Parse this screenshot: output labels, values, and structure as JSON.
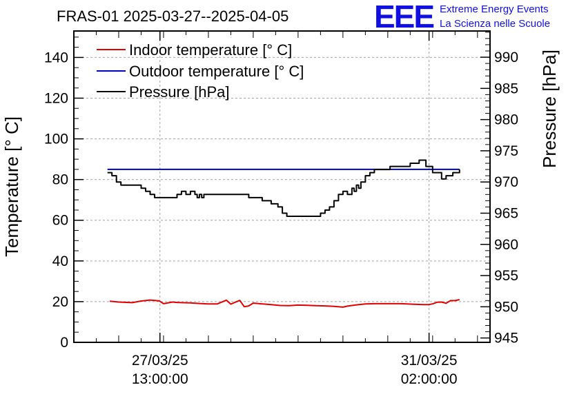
{
  "chart_data": {
    "type": "line",
    "title": "FRAS-01 2025-03-27--2025-04-05",
    "logo": {
      "text": "EEE",
      "line1": "Extreme Energy Events",
      "line2": "La Scienza nelle Scuole"
    },
    "ylabel": "Temperature [° C]",
    "y2label": "Pressure [hPa]",
    "xlim": [
      0,
      9.28
    ],
    "ylim": [
      0,
      153
    ],
    "y2lim": [
      944.3,
      994.2
    ],
    "y_ticks": [
      "0",
      "20",
      "40",
      "60",
      "80",
      "100",
      "120",
      "140"
    ],
    "y2_ticks": [
      "945",
      "950",
      "955",
      "960",
      "965",
      "970",
      "975",
      "980",
      "985",
      "990"
    ],
    "x_ticks": [
      {
        "x": 1.92,
        "date": "27/03/25",
        "time": "13:00:00"
      },
      {
        "x": 7.92,
        "date": "31/03/25",
        "time": "02:00:00"
      }
    ],
    "grid": true,
    "legend_position": "top-left",
    "series": [
      {
        "name": "Indoor temperature [° C]",
        "color": "#e00000",
        "axis": "left",
        "x": [
          0.8,
          1.0,
          1.3,
          1.5,
          1.7,
          1.9,
          2.0,
          2.2,
          2.3,
          2.4,
          2.6,
          2.8,
          3.0,
          3.2,
          3.4,
          3.5,
          3.7,
          3.8,
          3.9,
          4.0,
          4.2,
          4.4,
          4.6,
          4.8,
          5.0,
          5.2,
          5.4,
          5.6,
          5.8,
          6.0,
          6.1,
          6.3,
          6.5,
          6.7,
          7.0,
          7.3,
          7.6,
          7.8,
          7.9,
          8.0,
          8.1,
          8.2,
          8.3,
          8.4,
          8.5,
          8.6
        ],
        "y": [
          20.2,
          19.8,
          19.5,
          20.3,
          20.8,
          20.4,
          19.0,
          19.8,
          19.6,
          19.5,
          19.4,
          19.1,
          18.9,
          18.9,
          20.7,
          18.8,
          20.6,
          17.5,
          17.9,
          19.3,
          18.9,
          18.5,
          18.1,
          18.0,
          18.3,
          18.2,
          18.0,
          17.9,
          17.7,
          17.3,
          17.8,
          18.4,
          18.9,
          19.0,
          19.0,
          19.0,
          18.7,
          18.5,
          18.5,
          18.9,
          19.7,
          19.8,
          19.2,
          20.5,
          20.5,
          21.0
        ]
      },
      {
        "name": "Outdoor temperature [° C]",
        "color": "#0000c0",
        "axis": "left",
        "x": [
          0.75,
          8.6
        ],
        "y": [
          85.0,
          85.0
        ]
      },
      {
        "name": "Pressure [hPa]",
        "color": "#000000",
        "axis": "right",
        "step": true,
        "x": [
          0.75,
          0.85,
          0.95,
          1.05,
          1.3,
          1.5,
          1.6,
          1.7,
          1.8,
          2.1,
          2.3,
          2.4,
          2.5,
          2.6,
          2.7,
          2.75,
          2.8,
          2.85,
          2.9,
          3.4,
          3.9,
          4.2,
          4.4,
          4.55,
          4.65,
          4.75,
          5.4,
          5.5,
          5.6,
          5.7,
          5.8,
          5.9,
          6.0,
          6.1,
          6.2,
          6.25,
          6.3,
          6.35,
          6.4,
          6.5,
          6.6,
          6.7,
          7.0,
          7.05,
          7.3,
          7.5,
          7.7,
          7.85,
          8.0,
          8.1,
          8.2,
          8.3,
          8.45,
          8.6
        ],
        "y": [
          971.5,
          971.0,
          970.0,
          969.5,
          969.5,
          969.0,
          968.5,
          968.0,
          967.5,
          967.5,
          968.0,
          968.5,
          968.0,
          968.5,
          968.0,
          967.5,
          968.0,
          967.5,
          968.0,
          968.0,
          967.5,
          967.0,
          966.5,
          966.0,
          965.0,
          964.5,
          964.5,
          965.0,
          965.5,
          966.0,
          967.0,
          968.0,
          968.5,
          968.0,
          969.0,
          968.5,
          969.5,
          969.0,
          970.0,
          971.0,
          971.5,
          972.0,
          972.0,
          972.5,
          972.5,
          973.0,
          973.5,
          972.5,
          971.5,
          971.5,
          970.5,
          971.0,
          971.5,
          972.0
        ]
      }
    ]
  }
}
